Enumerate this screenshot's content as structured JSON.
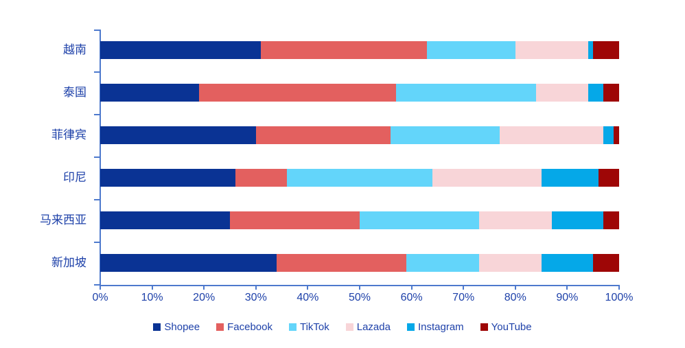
{
  "chart_data": {
    "type": "bar",
    "orientation": "horizontal",
    "stacked": true,
    "unit": "%",
    "title": "",
    "categories": [
      "越南",
      "泰国",
      "菲律宾",
      "印尼",
      "马来西亚",
      "新加坡"
    ],
    "series": [
      {
        "name": "Shopee",
        "color": "#0a3394",
        "values": [
          31,
          19,
          30,
          26,
          25,
          34
        ]
      },
      {
        "name": "Facebook",
        "color": "#e3605f",
        "values": [
          32,
          38,
          26,
          10,
          25,
          25
        ]
      },
      {
        "name": "TikTok",
        "color": "#63d5fa",
        "values": [
          17,
          27,
          21,
          28,
          23,
          14
        ]
      },
      {
        "name": "Lazada",
        "color": "#f8d5d8",
        "values": [
          14,
          10,
          20,
          21,
          14,
          12
        ]
      },
      {
        "name": "Instagram",
        "color": "#05a8e8",
        "values": [
          1,
          3,
          2,
          11,
          10,
          10
        ]
      },
      {
        "name": "YouTube",
        "color": "#9e0606",
        "values": [
          5,
          3,
          1,
          4,
          3,
          5
        ]
      }
    ],
    "x_ticks": [
      "0%",
      "10%",
      "20%",
      "30%",
      "40%",
      "50%",
      "60%",
      "70%",
      "80%",
      "90%",
      "100%"
    ],
    "xlim": [
      0,
      100
    ],
    "grid": false,
    "legend_position": "bottom",
    "axis_color": "#4d79cd",
    "text_color": "#1e41a9",
    "background": "#ffffff"
  }
}
